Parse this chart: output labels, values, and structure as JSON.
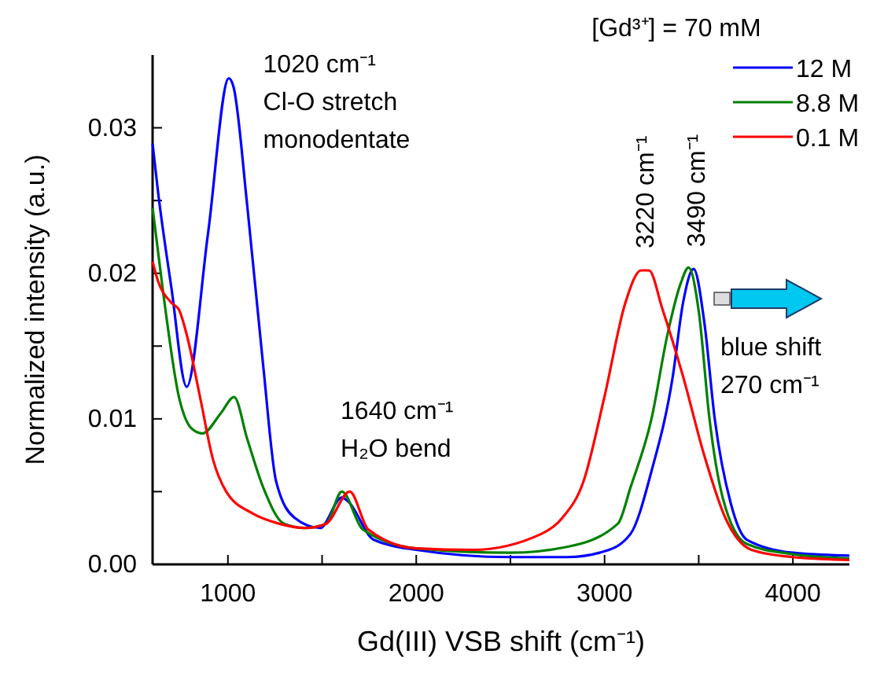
{
  "chart_data": {
    "type": "line",
    "xlabel": "Gd(III) VSB shift (cm⁻¹)",
    "ylabel": "Normalized intensity (a.u.)",
    "legend_title": "[Gd³⁺] = 70 mM",
    "legend": "top right",
    "grid": false,
    "marker": "none",
    "line_style": "solid",
    "xlim": [
      600,
      4300
    ],
    "xticks": [
      1000,
      {
        "value": 1500,
        "label": null
      },
      2000,
      {
        "value": 2500,
        "label": null
      },
      3000,
      {
        "value": 3500,
        "label": null
      },
      4000
    ],
    "ylim": [
      0,
      0.035
    ],
    "yticks": [
      {
        "value": 0,
        "label": "0.00"
      },
      {
        "value": 0.005,
        "label": null
      },
      {
        "value": 0.01,
        "label": "0.01"
      },
      {
        "value": 0.015,
        "label": null
      },
      {
        "value": 0.02,
        "label": "0.02"
      },
      {
        "value": 0.025,
        "label": null
      },
      {
        "value": 0.03,
        "label": "0.03"
      }
    ],
    "series": [
      {
        "name": "12 M",
        "color": "#0000ff",
        "x": [
          600,
          628,
          700,
          781,
          894,
          1005,
          1030,
          1103,
          1187,
          1256,
          1354,
          1490,
          1605,
          1640,
          1773,
          2000,
          2500,
          2800,
          3000,
          3138,
          3249,
          3362,
          3417,
          3473,
          3530,
          3585,
          3670,
          3755,
          4000,
          4300
        ],
        "values": [
          0.0289,
          0.0257,
          0.019,
          0.0122,
          0.0227,
          0.0334,
          0.0328,
          0.0246,
          0.0137,
          0.0057,
          0.0032,
          0.0025,
          0.0046,
          0.0043,
          0.0017,
          0.001,
          0.0005,
          0.0005,
          0.0009,
          0.0021,
          0.0064,
          0.0129,
          0.018,
          0.0203,
          0.0166,
          0.01,
          0.0042,
          0.0017,
          0.0008,
          0.0006
        ]
      },
      {
        "name": "8.8 M",
        "color": "#008000",
        "x": [
          600,
          656,
          740,
          810,
          865,
          963,
          1033,
          1103,
          1187,
          1298,
          1410,
          1522,
          1605,
          1716,
          2000,
          2500,
          2800,
          3071,
          3138,
          3249,
          3334,
          3404,
          3446,
          3501,
          3557,
          3627,
          3755,
          4000,
          4300
        ],
        "values": [
          0.0245,
          0.0187,
          0.0115,
          0.0093,
          0.009,
          0.0104,
          0.0115,
          0.0086,
          0.0053,
          0.0028,
          0.0025,
          0.0028,
          0.005,
          0.0024,
          0.0011,
          0.0008,
          0.0012,
          0.0028,
          0.0053,
          0.01,
          0.0158,
          0.0193,
          0.0204,
          0.0173,
          0.01,
          0.0046,
          0.0014,
          0.0007,
          0.0004
        ]
      },
      {
        "name": "0.1 M",
        "color": "#ff0000",
        "x": [
          600,
          628,
          698,
          740,
          781,
          852,
          921,
          991,
          1131,
          1270,
          1410,
          1522,
          1647,
          1745,
          2000,
          2302,
          2665,
          2776,
          2888,
          2999,
          3111,
          3194,
          3236,
          3306,
          3417,
          3529,
          3641,
          3780,
          4000,
          4300
        ],
        "values": [
          0.0208,
          0.0195,
          0.018,
          0.0175,
          0.0158,
          0.0115,
          0.0072,
          0.005,
          0.0035,
          0.0028,
          0.0025,
          0.0028,
          0.005,
          0.0024,
          0.0011,
          0.001,
          0.0021,
          0.0032,
          0.0057,
          0.0115,
          0.018,
          0.0202,
          0.0202,
          0.0176,
          0.0129,
          0.0075,
          0.0032,
          0.001,
          0.0005,
          0.0003
        ]
      }
    ],
    "annotations": [
      {
        "text": "1020 cm⁻¹\nCl-O stretch\nmonodentate",
        "x": 1020,
        "y": 0.0334
      },
      {
        "text": "1640 cm⁻¹\nH₂O bend",
        "x": 1640,
        "y": 0.005
      },
      {
        "text": "3220 cm⁻¹",
        "x": 3220,
        "y": 0.0202
      },
      {
        "text": "3490 cm⁻¹",
        "x": 3490,
        "y": 0.0203
      },
      "blue shift\n270 cm⁻¹"
    ]
  }
}
